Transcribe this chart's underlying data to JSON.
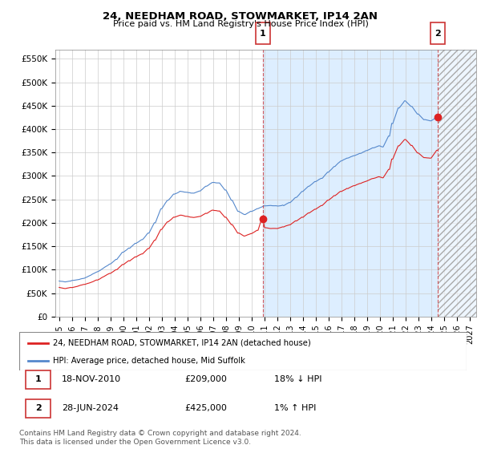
{
  "title": "24, NEEDHAM ROAD, STOWMARKET, IP14 2AN",
  "subtitle": "Price paid vs. HM Land Registry's House Price Index (HPI)",
  "ylabel_ticks": [
    0,
    50000,
    100000,
    150000,
    200000,
    250000,
    300000,
    350000,
    400000,
    450000,
    500000,
    550000
  ],
  "ylim": [
    0,
    570000
  ],
  "xlim_min": 1994.7,
  "xlim_max": 2027.5,
  "xticks": [
    1995,
    1996,
    1997,
    1998,
    1999,
    2000,
    2001,
    2002,
    2003,
    2004,
    2005,
    2006,
    2007,
    2008,
    2009,
    2010,
    2011,
    2012,
    2013,
    2014,
    2015,
    2016,
    2017,
    2018,
    2019,
    2020,
    2021,
    2022,
    2023,
    2024,
    2025,
    2026,
    2027
  ],
  "red_line_color": "#dd2222",
  "blue_line_color": "#5588cc",
  "background_color": "#ffffff",
  "grid_color": "#cccccc",
  "shade_color": "#ddeeff",
  "hatch_start": 2024.5,
  "sale1_x": 2010.88,
  "sale1_y": 209000,
  "sale2_x": 2024.5,
  "sale2_y": 425000,
  "vline1_x": 2010.88,
  "vline2_x": 2024.5,
  "legend_label_red": "24, NEEDHAM ROAD, STOWMARKET, IP14 2AN (detached house)",
  "legend_label_blue": "HPI: Average price, detached house, Mid Suffolk",
  "table_row1": [
    "1",
    "18-NOV-2010",
    "£209,000",
    "18% ↓ HPI"
  ],
  "table_row2": [
    "2",
    "28-JUN-2024",
    "£425,000",
    "1% ↑ HPI"
  ],
  "footer": "Contains HM Land Registry data © Crown copyright and database right 2024.\nThis data is licensed under the Open Government Licence v3.0."
}
